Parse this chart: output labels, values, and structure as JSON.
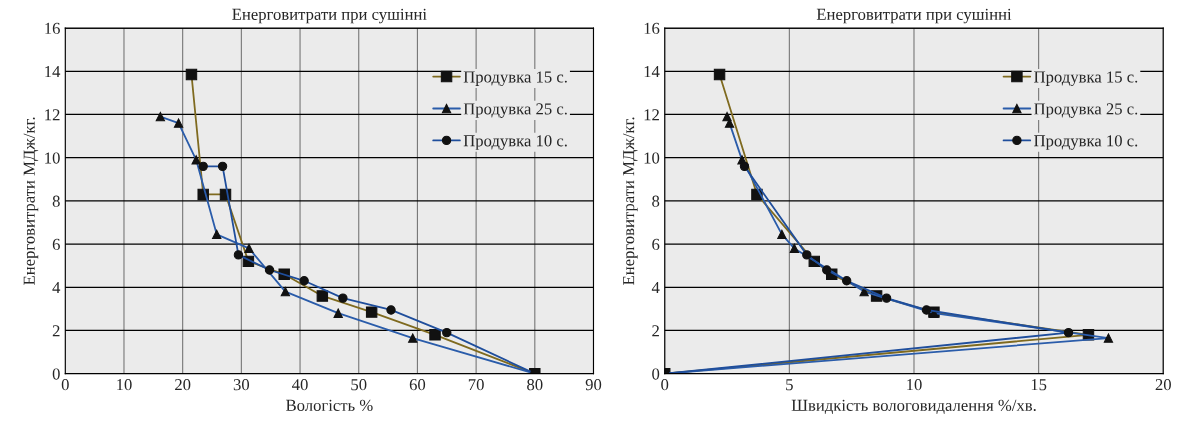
{
  "chart_data": [
    {
      "type": "line",
      "title": "Енерговитрати при сушінні",
      "xlabel": "Вологість %",
      "ylabel": "Енерговитрати МДж/кг.",
      "xlim": [
        0,
        90
      ],
      "xticks": [
        0,
        10,
        20,
        30,
        40,
        50,
        60,
        70,
        80,
        90
      ],
      "ylim": [
        0,
        16
      ],
      "yticks": [
        0,
        2,
        4,
        6,
        8,
        10,
        12,
        14,
        16
      ],
      "grid": true,
      "legend": "top right",
      "series": [
        {
          "name": "Продувка 15 с.",
          "color": "#7f6a1f",
          "marker": "square",
          "x": [
            21.5,
            23.5,
            27.3,
            31.2,
            37.3,
            43.8,
            52.2,
            63,
            80
          ],
          "values": [
            13.85,
            8.3,
            8.3,
            5.2,
            4.6,
            3.6,
            2.85,
            1.8,
            0
          ]
        },
        {
          "name": "Продувка 25 с.",
          "color": "#2a5caa",
          "marker": "triangle",
          "x": [
            16.2,
            19.3,
            22.3,
            25.8,
            31.3,
            37.5,
            46.5,
            59.2,
            80
          ],
          "values": [
            11.9,
            11.6,
            9.9,
            6.45,
            5.8,
            3.8,
            2.8,
            1.65,
            0
          ]
        },
        {
          "name": "Продувка 10 с.",
          "color": "#1f4e9c",
          "marker": "circle",
          "x": [
            23.5,
            26.8,
            29.5,
            34.8,
            40.7,
            47.3,
            55.5,
            65,
            80
          ],
          "values": [
            9.6,
            9.6,
            5.5,
            4.8,
            4.3,
            3.5,
            2.95,
            1.9,
            0
          ]
        }
      ]
    },
    {
      "type": "line",
      "title": "Енерговитрати при сушінні",
      "xlabel": "Швидкість вологовидалення %/хв.",
      "ylabel": "Енерговитрати МДж/кг.",
      "xlim": [
        0,
        20
      ],
      "xticks": [
        0,
        5,
        10,
        15,
        20
      ],
      "ylim": [
        0,
        16
      ],
      "yticks": [
        0,
        2,
        4,
        6,
        8,
        10,
        12,
        14,
        16
      ],
      "grid": true,
      "legend": "top right",
      "series": [
        {
          "name": "Продувка 15 с.",
          "color": "#7f6a1f",
          "marker": "square",
          "x": [
            2.2,
            3.7,
            6.0,
            6.7,
            8.5,
            10.8,
            17.0,
            0
          ],
          "values": [
            13.85,
            8.3,
            5.2,
            4.6,
            3.6,
            2.85,
            1.8,
            0
          ]
        },
        {
          "name": "Продувка 25 с.",
          "color": "#2a5caa",
          "marker": "triangle",
          "x": [
            2.5,
            2.6,
            3.1,
            4.7,
            5.2,
            8.0,
            10.8,
            17.8,
            0
          ],
          "values": [
            11.9,
            11.6,
            9.9,
            6.45,
            5.8,
            3.8,
            2.8,
            1.65,
            0
          ]
        },
        {
          "name": "Продувка 10 с.",
          "color": "#1f4e9c",
          "marker": "circle",
          "x": [
            3.2,
            5.7,
            6.5,
            7.3,
            8.9,
            10.5,
            16.2,
            0
          ],
          "values": [
            9.6,
            5.5,
            4.8,
            4.3,
            3.5,
            2.95,
            1.9,
            0
          ]
        }
      ]
    }
  ]
}
